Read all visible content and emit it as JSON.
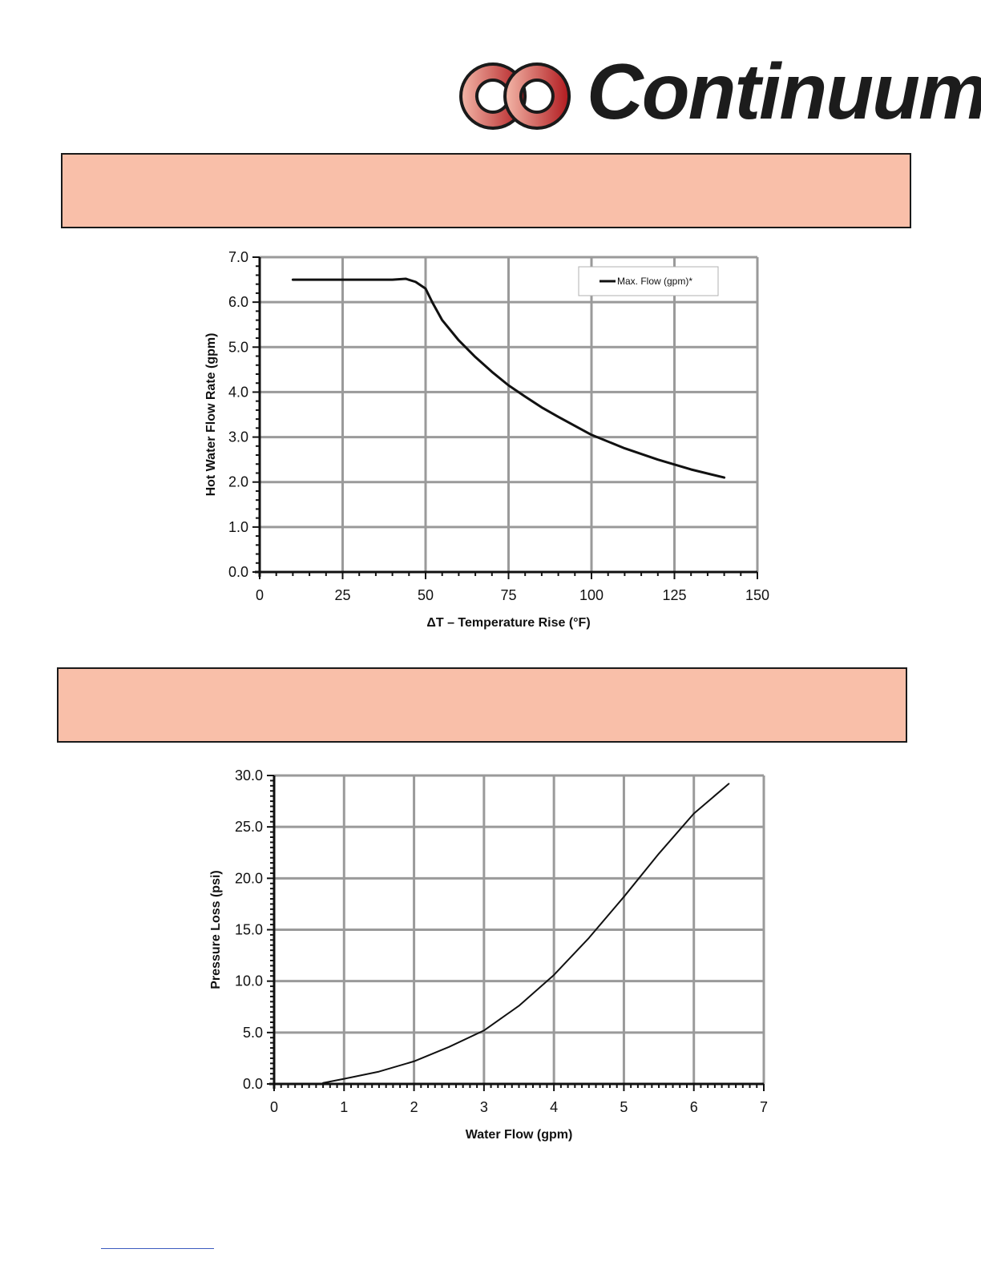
{
  "logo": {
    "text": "Continuum",
    "colors": {
      "light": "#f3b7a8",
      "dark": "#b11a1f"
    }
  },
  "banners": [
    "",
    ""
  ],
  "chart_data": [
    {
      "type": "line",
      "xlabel": "ΔT – Temperature Rise (°F)",
      "ylabel": "Hot Water Flow Rate (gpm)",
      "xlim": [
        0,
        150
      ],
      "ylim": [
        0,
        7
      ],
      "xticks": [
        "0",
        "25",
        "50",
        "75",
        "100",
        "125",
        "150"
      ],
      "yticks": [
        "0.0",
        "1.0",
        "2.0",
        "3.0",
        "4.0",
        "5.0",
        "6.0",
        "7.0"
      ],
      "grid": true,
      "legend_position": "top-right",
      "series": [
        {
          "name": "Max. Flow (gpm)*",
          "x": [
            10,
            20,
            30,
            40,
            44,
            47,
            50,
            52,
            55,
            60,
            65,
            70,
            75,
            80,
            85,
            90,
            100,
            110,
            120,
            130,
            140
          ],
          "y": [
            6.5,
            6.5,
            6.5,
            6.5,
            6.52,
            6.45,
            6.3,
            6.0,
            5.6,
            5.15,
            4.78,
            4.45,
            4.15,
            3.9,
            3.66,
            3.45,
            3.05,
            2.75,
            2.5,
            2.28,
            2.1
          ]
        }
      ]
    },
    {
      "type": "line",
      "xlabel": "Water Flow (gpm)",
      "ylabel": "Pressure Loss (psi)",
      "xlim": [
        0,
        7
      ],
      "ylim": [
        0,
        30
      ],
      "xticks": [
        "0",
        "1",
        "2",
        "3",
        "4",
        "5",
        "6",
        "7"
      ],
      "yticks": [
        "0.0",
        "5.0",
        "10.0",
        "15.0",
        "20.0",
        "25.0",
        "30.0"
      ],
      "grid": true,
      "series": [
        {
          "x": [
            0.7,
            1.0,
            1.5,
            2.0,
            2.5,
            3.0,
            3.5,
            4.0,
            4.5,
            5.0,
            5.5,
            6.0,
            6.5
          ],
          "y": [
            0.1,
            0.5,
            1.2,
            2.2,
            3.6,
            5.2,
            7.6,
            10.6,
            14.2,
            18.2,
            22.4,
            26.3,
            29.2
          ]
        }
      ]
    }
  ]
}
